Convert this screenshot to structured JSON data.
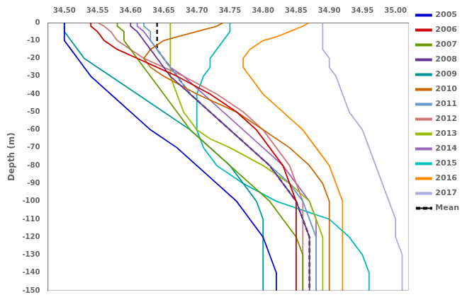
{
  "chart_data": {
    "type": "line",
    "ylabel": "Depth (m)",
    "xlim": [
      34.475,
      35.02
    ],
    "ylim": [
      -150,
      0
    ],
    "xticks": [
      {
        "value": 34.5,
        "label": "34.50"
      },
      34.55,
      {
        "value": 34.6,
        "label": "34.60"
      },
      34.65,
      {
        "value": 34.7,
        "label": "34.70"
      },
      34.75,
      {
        "value": 34.8,
        "label": "34.80"
      },
      34.85,
      {
        "value": 34.9,
        "label": "34.90"
      },
      34.95,
      {
        "value": 35.0,
        "label": "35.00"
      }
    ],
    "yticks": [
      0,
      -10,
      -20,
      -30,
      -40,
      -50,
      -60,
      -70,
      -80,
      -90,
      -100,
      -110,
      -120,
      -130,
      -140,
      -150
    ],
    "grid": false,
    "legend": "upper right",
    "series": [
      {
        "name": "2005",
        "color": "#0000cc",
        "x": [
          34.5,
          34.5,
          34.5,
          34.5,
          34.51,
          34.52,
          34.53,
          34.54,
          34.57,
          34.6,
          34.63,
          34.67,
          34.7,
          34.73,
          34.76,
          34.78,
          34.8,
          34.81,
          34.82,
          34.82
        ],
        "values": [
          0,
          -2,
          -5,
          -10,
          -15,
          -20,
          -25,
          -30,
          -40,
          -50,
          -60,
          -70,
          -80,
          -90,
          -100,
          -110,
          -120,
          -130,
          -140,
          -150
        ]
      },
      {
        "name": "2006",
        "color": "#cc0000",
        "x": [
          34.54,
          34.54,
          34.55,
          34.56,
          34.58,
          34.61,
          34.64,
          34.67,
          34.72,
          34.76,
          34.79,
          34.81,
          34.83,
          34.84,
          34.85,
          34.85,
          34.85,
          34.85,
          34.85,
          34.85
        ],
        "values": [
          0,
          -2,
          -5,
          -10,
          -15,
          -20,
          -25,
          -30,
          -40,
          -50,
          -60,
          -70,
          -80,
          -90,
          -100,
          -110,
          -120,
          -130,
          -140,
          -150
        ]
      },
      {
        "name": "2007",
        "color": "#669900",
        "x": [
          34.58,
          34.58,
          34.59,
          34.59,
          34.6,
          34.61,
          34.62,
          34.63,
          34.65,
          34.67,
          34.69,
          34.72,
          34.75,
          34.78,
          34.81,
          34.83,
          34.85,
          34.86,
          34.86,
          34.86
        ],
        "values": [
          0,
          -2,
          -5,
          -10,
          -15,
          -20,
          -25,
          -30,
          -40,
          -50,
          -60,
          -70,
          -80,
          -90,
          -100,
          -110,
          -120,
          -130,
          -140,
          -150
        ]
      },
      {
        "name": "2008",
        "color": "#663399",
        "x": [
          34.6,
          34.6,
          34.61,
          34.62,
          34.63,
          34.64,
          34.65,
          34.66,
          34.69,
          34.72,
          34.75,
          34.78,
          34.81,
          34.83,
          34.85,
          34.86,
          34.87,
          34.87,
          34.87,
          34.87
        ],
        "values": [
          0,
          -2,
          -5,
          -10,
          -15,
          -20,
          -25,
          -30,
          -40,
          -50,
          -60,
          -70,
          -80,
          -90,
          -100,
          -110,
          -120,
          -130,
          -140,
          -150
        ]
      },
      {
        "name": "2009",
        "color": "#009999",
        "x": [
          34.5,
          34.5,
          34.5,
          34.51,
          34.52,
          34.53,
          34.55,
          34.57,
          34.61,
          34.65,
          34.69,
          34.72,
          34.75,
          34.77,
          34.79,
          34.8,
          34.8,
          34.8,
          34.8,
          34.8
        ],
        "values": [
          0,
          -2,
          -5,
          -10,
          -15,
          -20,
          -25,
          -30,
          -40,
          -50,
          -60,
          -70,
          -80,
          -90,
          -100,
          -110,
          -120,
          -130,
          -140,
          -150
        ]
      },
      {
        "name": "2010",
        "color": "#cc6600",
        "x": [
          34.74,
          34.73,
          34.7,
          34.67,
          34.65,
          34.63,
          34.62,
          34.63,
          34.65,
          34.7,
          34.76,
          34.8,
          34.84,
          34.87,
          34.89,
          34.9,
          34.9,
          34.9,
          34.9,
          34.9,
          34.9
        ],
        "values": [
          0,
          -2,
          -5,
          -8,
          -10,
          -15,
          -20,
          -25,
          -30,
          -40,
          -50,
          -60,
          -70,
          -80,
          -90,
          -100,
          -110,
          -120,
          -130,
          -140,
          -150
        ]
      },
      {
        "name": "2011",
        "color": "#6699cc",
        "x": [
          34.62,
          34.62,
          34.63,
          34.63,
          34.64,
          34.65,
          34.66,
          34.67,
          34.69,
          34.72,
          34.75,
          34.78,
          34.81,
          34.84,
          34.86,
          34.87,
          34.88,
          34.88,
          34.88,
          34.88
        ],
        "values": [
          0,
          -2,
          -5,
          -10,
          -15,
          -20,
          -25,
          -30,
          -40,
          -50,
          -60,
          -70,
          -80,
          -90,
          -100,
          -110,
          -120,
          -130,
          -140,
          -150
        ]
      },
      {
        "name": "2012",
        "color": "#cc7777",
        "x": [
          34.55,
          34.56,
          34.57,
          34.58,
          34.6,
          34.62,
          34.65,
          34.68,
          34.73,
          34.77,
          34.8,
          34.82,
          34.84,
          34.85,
          34.86,
          34.86,
          34.86,
          34.86,
          34.86,
          34.86
        ],
        "values": [
          0,
          -2,
          -5,
          -10,
          -15,
          -20,
          -25,
          -30,
          -40,
          -50,
          -60,
          -70,
          -80,
          -90,
          -100,
          -110,
          -120,
          -130,
          -140,
          -150
        ]
      },
      {
        "name": "2013",
        "color": "#99bb00",
        "x": [
          34.66,
          34.66,
          34.66,
          34.66,
          34.66,
          34.66,
          34.66,
          34.66,
          34.67,
          34.68,
          34.7,
          34.72,
          34.75,
          34.8,
          34.84,
          34.87,
          34.88,
          34.89,
          34.89,
          34.89,
          34.89
        ],
        "values": [
          0,
          -2,
          -5,
          -10,
          -15,
          -20,
          -25,
          -30,
          -40,
          -50,
          -60,
          -65,
          -70,
          -80,
          -90,
          -100,
          -110,
          -120,
          -130,
          -140,
          -150
        ]
      },
      {
        "name": "2014",
        "color": "#9966bb",
        "x": [
          34.61,
          34.61,
          34.62,
          34.63,
          34.64,
          34.65,
          34.66,
          34.68,
          34.71,
          34.74,
          34.77,
          34.8,
          34.83,
          34.85,
          34.87,
          34.88,
          34.88,
          34.88,
          34.88,
          34.88
        ],
        "values": [
          0,
          -2,
          -5,
          -10,
          -15,
          -20,
          -25,
          -30,
          -40,
          -50,
          -60,
          -70,
          -80,
          -90,
          -100,
          -110,
          -120,
          -130,
          -140,
          -150
        ]
      },
      {
        "name": "2015",
        "color": "#00bbbb",
        "x": [
          34.75,
          34.75,
          34.75,
          34.74,
          34.73,
          34.72,
          34.72,
          34.71,
          34.7,
          34.7,
          34.7,
          34.71,
          34.73,
          34.77,
          34.82,
          34.86,
          34.9,
          34.93,
          34.95,
          34.96,
          34.96
        ],
        "values": [
          0,
          -2,
          -5,
          -10,
          -15,
          -20,
          -25,
          -30,
          -40,
          -50,
          -60,
          -70,
          -80,
          -90,
          -100,
          -105,
          -110,
          -120,
          -130,
          -140,
          -150
        ]
      },
      {
        "name": "2016",
        "color": "#ff8800",
        "x": [
          34.87,
          34.86,
          34.84,
          34.82,
          34.8,
          34.78,
          34.77,
          34.77,
          34.78,
          34.8,
          34.83,
          34.86,
          34.88,
          34.9,
          34.91,
          34.92,
          34.92,
          34.92,
          34.92,
          34.92,
          34.92
        ],
        "values": [
          0,
          -2,
          -5,
          -8,
          -10,
          -15,
          -20,
          -25,
          -30,
          -40,
          -50,
          -60,
          -70,
          -80,
          -90,
          -100,
          -110,
          -120,
          -130,
          -140,
          -150
        ]
      },
      {
        "name": "2017",
        "color": "#aaaadd",
        "x": [
          34.89,
          34.89,
          34.89,
          34.89,
          34.89,
          34.9,
          34.9,
          34.91,
          34.92,
          34.93,
          34.95,
          34.96,
          34.97,
          34.98,
          34.99,
          35.0,
          35.0,
          35.01,
          35.01,
          35.01
        ],
        "values": [
          0,
          -2,
          -5,
          -10,
          -15,
          -20,
          -25,
          -30,
          -40,
          -50,
          -60,
          -70,
          -80,
          -90,
          -100,
          -110,
          -120,
          -130,
          -140,
          -150
        ]
      },
      {
        "name": "Mean",
        "color": "#000000",
        "line_style": "dashed",
        "x": [
          34.64,
          34.64,
          34.64,
          34.64,
          34.65,
          34.66,
          34.67,
          34.69,
          34.72,
          34.75,
          34.78,
          34.81,
          34.83,
          34.85,
          34.86,
          34.87,
          34.87,
          34.87,
          34.87
        ],
        "values": [
          0,
          -5,
          -10,
          -15,
          -20,
          -25,
          -30,
          -40,
          -50,
          -60,
          -70,
          -80,
          -90,
          -100,
          -110,
          -120,
          -130,
          -140,
          -150
        ]
      }
    ]
  }
}
